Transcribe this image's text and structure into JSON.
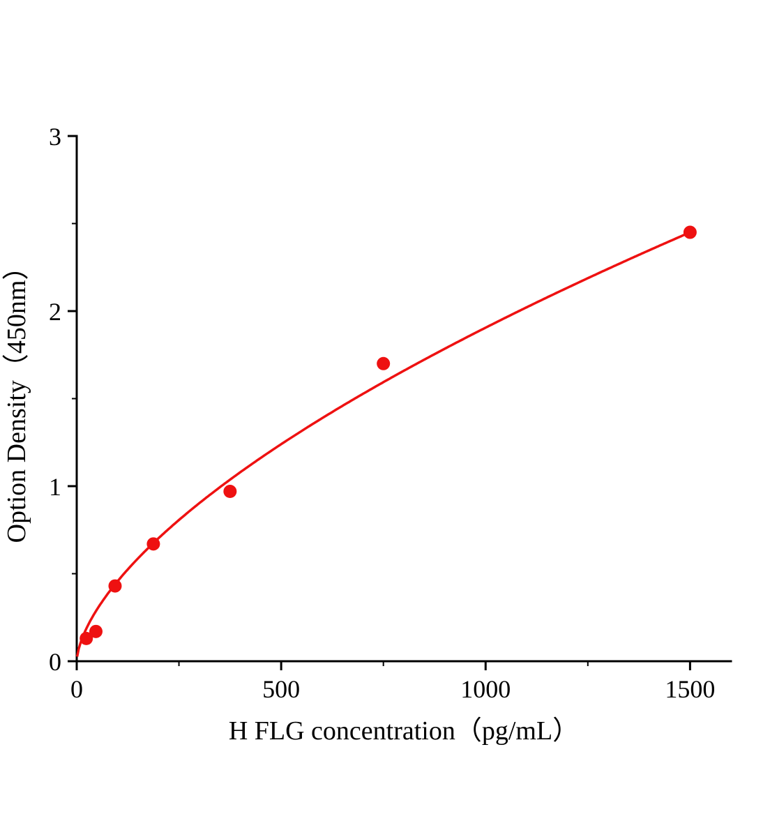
{
  "chart_data": {
    "type": "scatter",
    "title": "",
    "xlabel": "H FLG concentration（pg/mL）",
    "ylabel": "Option Density（450nm）",
    "x": [
      23.4,
      46.9,
      93.8,
      187.5,
      375,
      750,
      1500
    ],
    "y": [
      0.13,
      0.17,
      0.43,
      0.67,
      0.97,
      1.7,
      2.45
    ],
    "xlim": [
      0,
      1600
    ],
    "ylim": [
      0,
      3
    ],
    "x_ticks": [
      0,
      500,
      1000,
      1500
    ],
    "y_ticks": [
      0,
      1,
      2,
      3
    ],
    "x_minor_ticks": [
      250,
      750,
      1250
    ],
    "y_minor_ticks": [
      0.5,
      1.5,
      2.5
    ],
    "grid": false,
    "legend": "none",
    "point_color": "#ee1111",
    "curve_color": "#ee1111",
    "axis_color": "#000000",
    "fit": {
      "type": "power",
      "a": 0.0263,
      "b": 0.62,
      "x_start": 1,
      "x_end": 1500
    }
  }
}
